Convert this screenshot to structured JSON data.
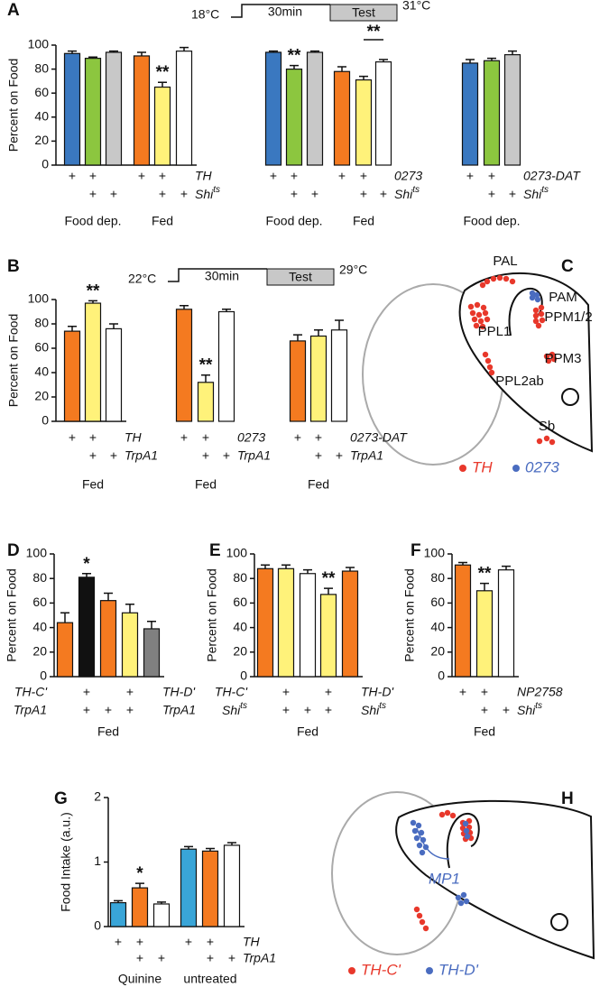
{
  "panel_labels": [
    "A",
    "B",
    "C",
    "D",
    "E",
    "F",
    "G",
    "H"
  ],
  "protocols": [
    {
      "start": "18°C",
      "duration": "30min",
      "test": "Test",
      "end": "31°C"
    },
    {
      "start": "22°C",
      "duration": "30min",
      "test": "Test",
      "end": "29°C"
    }
  ],
  "diagrams": [
    {
      "labels": [
        "PAL",
        "PAM",
        "PPM1/2",
        "PPL1",
        "PPM3",
        "PPL2ab",
        "Sb"
      ],
      "legend": [
        {
          "text": "TH",
          "color": "#e8382b"
        },
        {
          "text": "0273",
          "color": "#4a6cc0"
        }
      ]
    },
    {
      "labels": [
        "MP1"
      ],
      "legend": [
        {
          "text": "TH-C'",
          "color": "#e8382b"
        },
        {
          "text": "TH-D'",
          "color": "#4a6cc0"
        }
      ]
    }
  ],
  "chart_data": [
    {
      "type": "bar",
      "ylabel": "Percent on Food",
      "ylim": [
        0,
        100
      ],
      "yticks": [
        0,
        20,
        40,
        60,
        80,
        100
      ],
      "values": [
        93,
        89,
        94,
        91,
        65,
        95
      ],
      "errors": [
        2,
        1,
        1,
        3,
        4,
        3
      ],
      "colors": [
        "#3a78c0",
        "#8cc63f",
        "#c8c8c8",
        "#f47a20",
        "#fff27a",
        "#ffffff"
      ],
      "annotations": [
        null,
        null,
        null,
        null,
        "**",
        null
      ],
      "rows": [
        {
          "cells": [
            "+",
            "+",
            null,
            "+",
            "+",
            null
          ],
          "label": "TH"
        },
        {
          "cells": [
            null,
            "+",
            "+",
            null,
            "+",
            "+"
          ],
          "label": {
            "text": "Shi",
            "sup": "ts"
          }
        }
      ],
      "group_labels": [
        null,
        "Food dep.",
        null,
        null,
        "Fed",
        null
      ]
    },
    {
      "type": "bar",
      "ylim": [
        0,
        100
      ],
      "values": [
        94,
        80,
        94,
        78,
        71,
        86
      ],
      "errors": [
        1,
        3,
        1,
        4,
        3,
        2
      ],
      "colors": [
        "#3a78c0",
        "#8cc63f",
        "#c8c8c8",
        "#f47a20",
        "#fff27a",
        "#ffffff"
      ],
      "annotations": [
        null,
        "**",
        null,
        null,
        "**",
        null
      ],
      "rows": [
        {
          "cells": [
            "+",
            "+",
            null,
            "+",
            "+",
            null
          ],
          "label": "0273"
        },
        {
          "cells": [
            null,
            "+",
            "+",
            null,
            "+",
            "+"
          ],
          "label": {
            "text": "Shi",
            "sup": "ts"
          }
        }
      ],
      "group_labels": [
        null,
        "Food dep.",
        null,
        null,
        "Fed",
        null
      ]
    },
    {
      "type": "bar",
      "ylim": [
        0,
        100
      ],
      "values": [
        85,
        87,
        92
      ],
      "errors": [
        3,
        2,
        3
      ],
      "colors": [
        "#3a78c0",
        "#8cc63f",
        "#c8c8c8"
      ],
      "rows": [
        {
          "cells": [
            "+",
            "+",
            null
          ],
          "label": "0273-DAT"
        },
        {
          "cells": [
            null,
            "+",
            "+"
          ],
          "label": {
            "text": "Shi",
            "sup": "ts"
          }
        }
      ],
      "group_labels": [
        null,
        "Food dep.",
        null
      ]
    },
    {
      "type": "bar",
      "ylabel": "Percent on Food",
      "ylim": [
        0,
        100
      ],
      "yticks": [
        0,
        20,
        40,
        60,
        80,
        100
      ],
      "values": [
        74,
        97,
        76
      ],
      "errors": [
        4,
        2,
        4
      ],
      "colors": [
        "#f47a20",
        "#fff27a",
        "#ffffff"
      ],
      "annotations": [
        null,
        "**",
        null
      ],
      "rows": [
        {
          "cells": [
            "+",
            "+",
            null
          ],
          "label": "TH"
        },
        {
          "cells": [
            null,
            "+",
            "+"
          ],
          "label": "TrpA1"
        }
      ],
      "group_labels": [
        null,
        "Fed",
        null
      ]
    },
    {
      "type": "bar",
      "ylim": [
        0,
        100
      ],
      "values": [
        92,
        32,
        90
      ],
      "errors": [
        3,
        6,
        2
      ],
      "colors": [
        "#f47a20",
        "#fff27a",
        "#ffffff"
      ],
      "annotations": [
        null,
        "**",
        null
      ],
      "rows": [
        {
          "cells": [
            "+",
            "+",
            null
          ],
          "label": "0273"
        },
        {
          "cells": [
            null,
            "+",
            "+"
          ],
          "label": "TrpA1"
        }
      ],
      "group_labels": [
        null,
        "Fed",
        null
      ]
    },
    {
      "type": "bar",
      "ylim": [
        0,
        100
      ],
      "values": [
        66,
        70,
        75
      ],
      "errors": [
        5,
        5,
        8
      ],
      "colors": [
        "#f47a20",
        "#fff27a",
        "#ffffff"
      ],
      "rows": [
        {
          "cells": [
            "+",
            "+",
            null
          ],
          "label": "0273-DAT"
        },
        {
          "cells": [
            null,
            "+",
            "+"
          ],
          "label": "TrpA1"
        }
      ],
      "group_labels": [
        null,
        "Fed",
        null
      ]
    },
    {
      "type": "bar",
      "ylabel": "Percent on Food",
      "ylim": [
        0,
        100
      ],
      "yticks": [
        0,
        20,
        40,
        60,
        80,
        100
      ],
      "values": [
        44,
        81,
        62,
        52,
        39
      ],
      "errors": [
        8,
        3,
        6,
        7,
        6
      ],
      "colors": [
        "#f47a20",
        "#111111",
        "#f47a20",
        "#fff27a",
        "#808080"
      ],
      "annotations": [
        null,
        "*",
        null,
        null,
        null
      ],
      "rows": [
        {
          "left": "TH-C'",
          "cells": [
            null,
            "+",
            null,
            "+",
            null
          ],
          "label": "TH-D'"
        },
        {
          "left": "TrpA1",
          "cells": [
            null,
            "+",
            "+",
            "+",
            null
          ],
          "label": "TrpA1"
        }
      ],
      "group_labels": [
        null,
        null,
        "Fed",
        null,
        null
      ]
    },
    {
      "type": "bar",
      "ylabel": "Percent on Food",
      "ylim": [
        0,
        100
      ],
      "yticks": [
        0,
        20,
        40,
        60,
        80,
        100
      ],
      "values": [
        88,
        88,
        84,
        67,
        86
      ],
      "errors": [
        3,
        3,
        3,
        5,
        3
      ],
      "colors": [
        "#f47a20",
        "#fff27a",
        "#ffffff",
        "#fff27a",
        "#f47a20"
      ],
      "annotations": [
        null,
        null,
        null,
        "**",
        null
      ],
      "rows": [
        {
          "left": "TH-C'",
          "cells": [
            null,
            "+",
            null,
            "+",
            null
          ],
          "label": "TH-D'"
        },
        {
          "left": {
            "text": "Shi",
            "sup": "ts"
          },
          "cells": [
            null,
            "+",
            "+",
            "+",
            null
          ],
          "label": {
            "text": "Shi",
            "sup": "ts"
          }
        }
      ],
      "group_labels": [
        null,
        null,
        "Fed",
        null,
        null
      ]
    },
    {
      "type": "bar",
      "ylabel": "Percent on Food",
      "ylim": [
        0,
        100
      ],
      "yticks": [
        0,
        20,
        40,
        60,
        80,
        100
      ],
      "values": [
        91,
        70,
        87
      ],
      "errors": [
        2,
        6,
        3
      ],
      "colors": [
        "#f47a20",
        "#fff27a",
        "#ffffff"
      ],
      "annotations": [
        null,
        "**",
        null
      ],
      "rows": [
        {
          "cells": [
            "+",
            "+",
            null
          ],
          "label": "NP2758"
        },
        {
          "cells": [
            null,
            "+",
            "+"
          ],
          "label": {
            "text": "Shi",
            "sup": "ts"
          }
        }
      ],
      "group_labels": [
        null,
        "Fed",
        null
      ]
    },
    {
      "type": "bar",
      "ylabel": "Food Intake (a.u.)",
      "ylim": [
        0,
        2
      ],
      "yticks": [
        0,
        1,
        2
      ],
      "values": [
        0.37,
        0.6,
        0.35,
        1.2,
        1.17,
        1.26
      ],
      "errors": [
        0.03,
        0.07,
        0.03,
        0.04,
        0.04,
        0.04
      ],
      "colors": [
        "#39a5d8",
        "#f47a20",
        "#ffffff",
        "#39a5d8",
        "#f47a20",
        "#ffffff"
      ],
      "annotations": [
        null,
        "*",
        null,
        null,
        null,
        null
      ],
      "rows": [
        {
          "cells": [
            "+",
            "+",
            null,
            "+",
            "+",
            null
          ],
          "label": "TH"
        },
        {
          "cells": [
            null,
            "+",
            "+",
            null,
            "+",
            "+"
          ],
          "label": "TrpA1"
        }
      ],
      "group_labels": [
        null,
        "Quinine",
        null,
        null,
        "untreated",
        null
      ]
    }
  ]
}
